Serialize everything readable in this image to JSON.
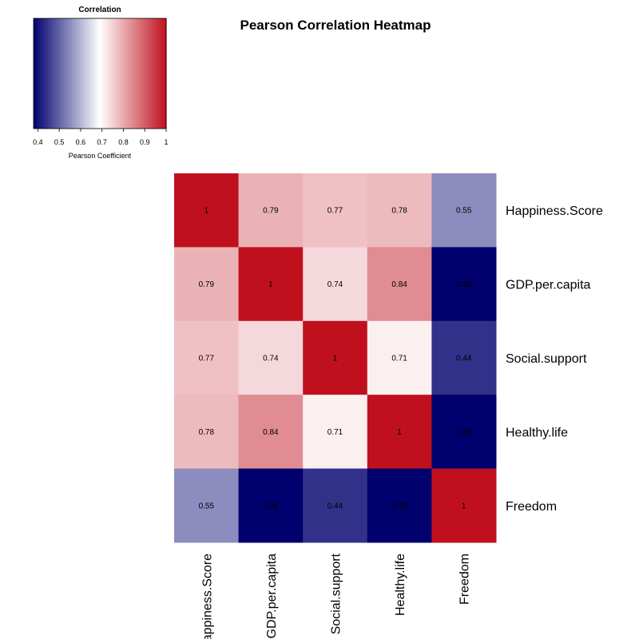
{
  "chart_data": {
    "type": "heatmap",
    "title": "Pearson Correlation Heatmap",
    "rows": [
      "Happiness.Score",
      "GDP.per.capita",
      "Social.support",
      "Healthy.life",
      "Freedom"
    ],
    "columns": [
      "Happiness.Score",
      "GDP.per.capita",
      "Social.support",
      "Healthy.life",
      "Freedom"
    ],
    "values": [
      [
        1,
        0.79,
        0.77,
        0.78,
        0.55
      ],
      [
        0.79,
        1,
        0.74,
        0.84,
        0.38
      ],
      [
        0.77,
        0.74,
        1,
        0.71,
        0.44
      ],
      [
        0.78,
        0.84,
        0.71,
        1,
        0.38
      ],
      [
        0.55,
        0.38,
        0.44,
        0.38,
        1
      ]
    ],
    "cell_labels": [
      [
        "1",
        "0.79",
        "0.77",
        "0.78",
        "0.55"
      ],
      [
        "0.79",
        "1",
        "0.74",
        "0.84",
        "0.38"
      ],
      [
        "0.77",
        "0.74",
        "1",
        "0.71",
        "0.44"
      ],
      [
        "0.78",
        "0.84",
        "0.71",
        "1",
        "0.38"
      ],
      [
        "0.55",
        "0.38",
        "0.44",
        "0.38",
        "1"
      ]
    ],
    "legend": {
      "title": "Correlation",
      "xlabel": "Pearson Coefficient",
      "range": [
        0.38,
        1
      ],
      "ticks": [
        0.4,
        0.5,
        0.6,
        0.7,
        0.8,
        0.9,
        1
      ],
      "tick_labels": [
        "0.4",
        "0.5",
        "0.6",
        "0.7",
        "0.8",
        "0.9",
        "1"
      ],
      "placement": "top-left"
    },
    "colors": {
      "low": "#00006e",
      "mid": "#ffffff",
      "high": "#c0101e"
    },
    "color_midpoint": 0.69
  }
}
